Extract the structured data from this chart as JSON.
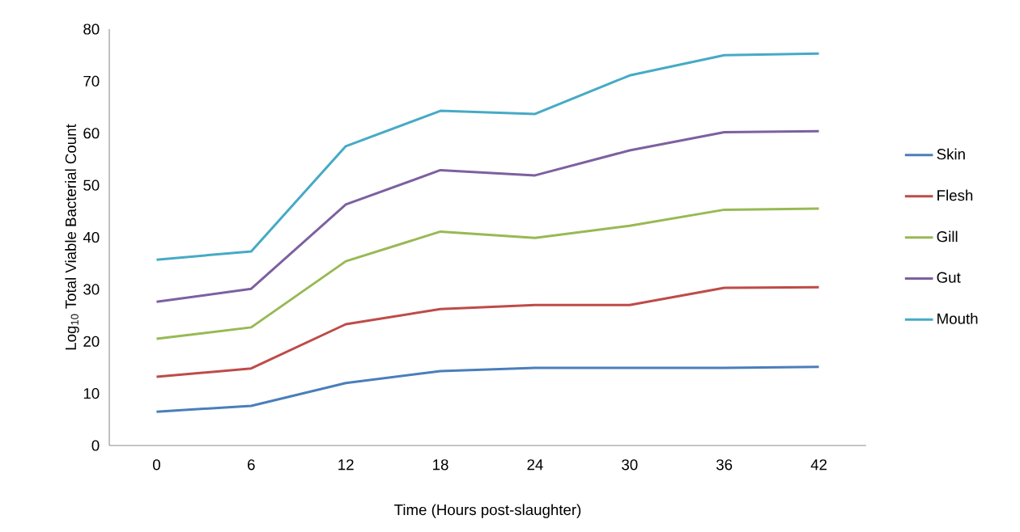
{
  "chart_data": {
    "type": "line",
    "xlabel": "Time (Hours post-slaughter)",
    "ylabel": "Log$_{10}$ Total Viable Bacterial Count",
    "categories": [
      "0",
      "6",
      "12",
      "18",
      "24",
      "30",
      "36",
      "42"
    ],
    "series": [
      {
        "name": "Skin",
        "color": "#4a7ebb",
        "values": [
          6.5,
          7.6,
          12.0,
          14.3,
          14.9,
          14.9,
          14.9,
          15.1
        ]
      },
      {
        "name": "Flesh",
        "color": "#be4b48",
        "values": [
          13.2,
          14.8,
          23.3,
          26.2,
          27.0,
          27.0,
          30.3,
          30.4
        ]
      },
      {
        "name": "Gill",
        "color": "#98b954",
        "values": [
          20.5,
          22.7,
          35.4,
          41.1,
          39.9,
          42.2,
          45.3,
          45.5
        ]
      },
      {
        "name": "Gut",
        "color": "#7d60a0",
        "values": [
          27.6,
          30.1,
          46.3,
          52.9,
          51.9,
          56.7,
          60.2,
          60.4
        ]
      },
      {
        "name": "Mouth",
        "color": "#46aac5",
        "values": [
          35.7,
          37.3,
          57.5,
          64.3,
          63.7,
          71.1,
          75.0,
          75.3
        ]
      }
    ],
    "ylim": [
      0,
      80
    ],
    "yticks": [
      0,
      10,
      20,
      30,
      40,
      50,
      60,
      70,
      80
    ],
    "legend": "right",
    "grid": false,
    "marker": "none",
    "line_style": "solid"
  }
}
